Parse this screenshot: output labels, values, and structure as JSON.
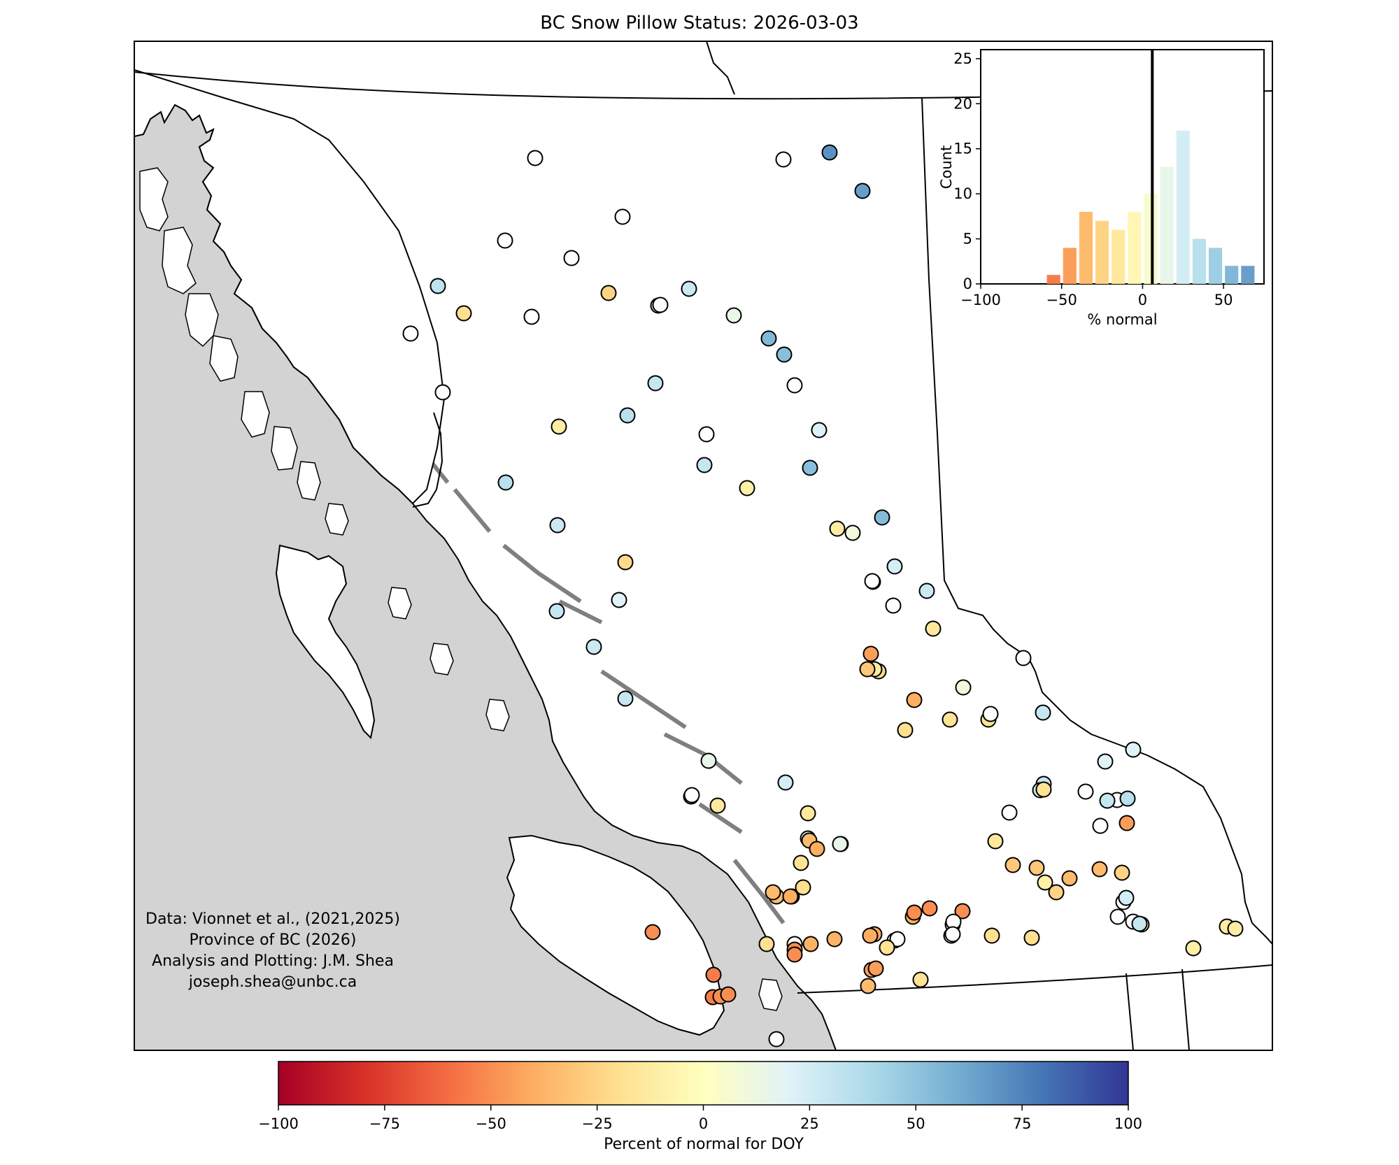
{
  "title": "BC Snow Pillow Status: 2026-03-03",
  "credits": [
    "Data: Vionnet et al., (2021,2025)",
    "Province of BC (2026)",
    "Analysis and Plotting: J.M. Shea",
    "joseph.shea@unbc.ca"
  ],
  "colors": {
    "land": "#ffffff",
    "ocean": "#d3d3d3",
    "outline": "#000000",
    "colormap": [
      "#a50026",
      "#d73027",
      "#f46d43",
      "#fdae61",
      "#fee090",
      "#ffffbf",
      "#e0f3f8",
      "#abd9e9",
      "#74add1",
      "#4575b4",
      "#313695"
    ]
  },
  "colorbar": {
    "label": "Percent of normal for DOY",
    "min": -100,
    "max": 100,
    "ticks": [
      "-100",
      "-75",
      "-50",
      "-25",
      "0",
      "25",
      "50",
      "75",
      "100"
    ]
  },
  "chart_data": {
    "type": "bar",
    "xlabel": "% normal",
    "ylabel": "Count",
    "xlim": [
      -100,
      75
    ],
    "ylim": [
      0,
      26
    ],
    "xticks": [
      "-100",
      "-50",
      "0",
      "50"
    ],
    "yticks": [
      "0",
      "5",
      "10",
      "15",
      "20",
      "25"
    ],
    "bin_width": 10,
    "bins": [
      {
        "center": -55,
        "count": 1
      },
      {
        "center": -45,
        "count": 4
      },
      {
        "center": -35,
        "count": 8
      },
      {
        "center": -25,
        "count": 7
      },
      {
        "center": -15,
        "count": 6
      },
      {
        "center": -5,
        "count": 8
      },
      {
        "center": 5,
        "count": 10
      },
      {
        "center": 15,
        "count": 13
      },
      {
        "center": 25,
        "count": 17
      },
      {
        "center": 35,
        "count": 5
      },
      {
        "center": 45,
        "count": 4
      },
      {
        "center": 55,
        "count": 2
      },
      {
        "center": 65,
        "count": 2
      }
    ],
    "median_line": 6
  }
}
